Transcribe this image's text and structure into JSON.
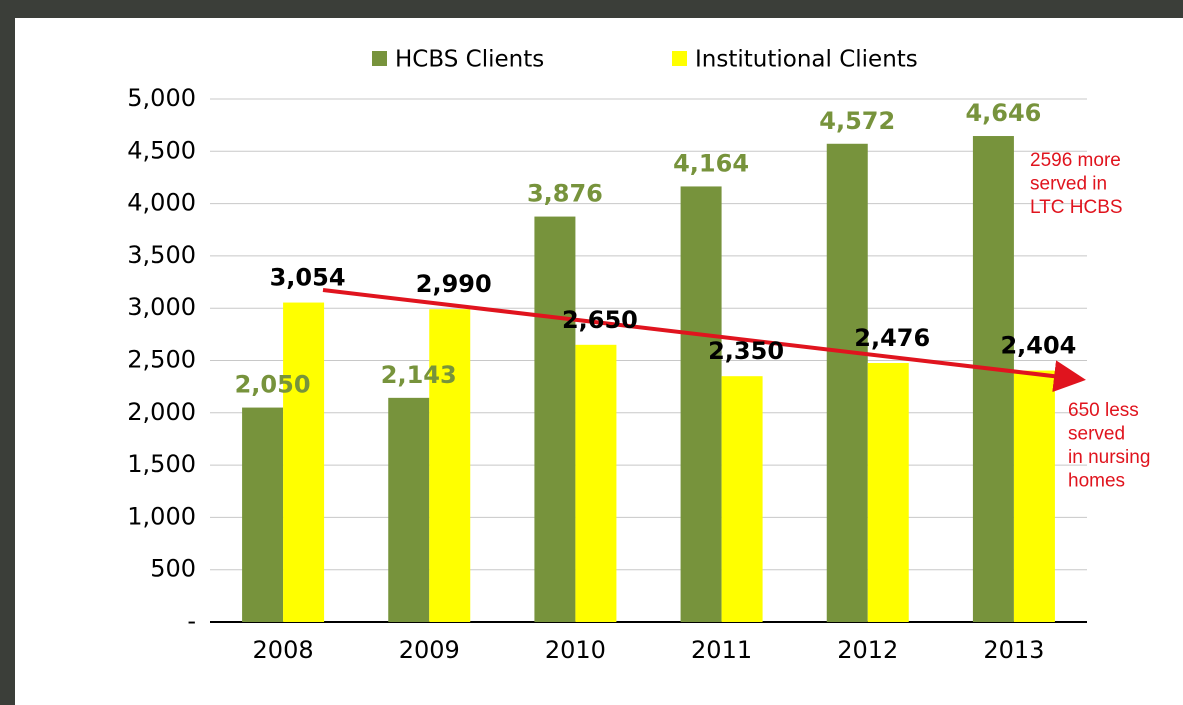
{
  "chart_data": {
    "type": "bar",
    "categories": [
      "2008",
      "2009",
      "2010",
      "2011",
      "2012",
      "2013"
    ],
    "series": [
      {
        "name": "HCBS Clients",
        "color": "#77933c",
        "values": [
          2050,
          2143,
          3876,
          4164,
          4572,
          4646
        ],
        "value_labels": [
          "2,050",
          "2,143",
          "3,876",
          "4,164",
          "4,572",
          "4,646"
        ]
      },
      {
        "name": "Institutional Clients",
        "color": "#ffff00",
        "values": [
          3054,
          2990,
          2650,
          2350,
          2476,
          2404
        ],
        "value_labels": [
          "3,054",
          "2,990",
          "2,650",
          "2,350",
          "2,476",
          "2,404"
        ]
      }
    ],
    "ylim": [
      0,
      5000
    ],
    "yticks": [
      {
        "value": 0,
        "label": "-"
      },
      500,
      {
        "value": 1000,
        "label": "1,000"
      },
      {
        "value": 1500,
        "label": "1,500"
      },
      {
        "value": 2000,
        "label": "2,000"
      },
      {
        "value": 2500,
        "label": "2,500"
      },
      {
        "value": 3000,
        "label": "3,000"
      },
      {
        "value": 3500,
        "label": "3,500"
      },
      {
        "value": 4000,
        "label": "4,000"
      },
      {
        "value": 4500,
        "label": "4,500"
      },
      {
        "value": 5000,
        "label": "5,000"
      }
    ],
    "grid": true,
    "legend": "top",
    "annotations": [
      {
        "lines": [
          "2596 more",
          "served in",
          "LTC HCBS"
        ]
      },
      {
        "lines": [
          "650 less",
          "served",
          "in nursing",
          "homes"
        ]
      }
    ]
  }
}
